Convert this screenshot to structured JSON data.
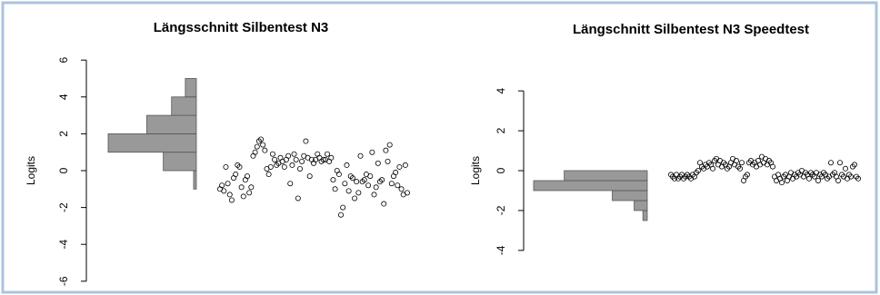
{
  "chart_data": [
    {
      "type": "scatter",
      "title": "Längsschnitt Silbentest N3",
      "ylabel": "Logits",
      "ylim": [
        -6.6,
        6.6
      ],
      "yticks": [
        -6,
        -4,
        -2,
        0,
        2,
        4,
        6
      ],
      "histogram": {
        "bins": [
          -1,
          0,
          1,
          2,
          3,
          4,
          5
        ],
        "counts": [
          1,
          12,
          32,
          18,
          9,
          4
        ],
        "xlim": [
          0,
          32
        ],
        "color": "#999999"
      },
      "values": [
        -1.0,
        -0.8,
        -1.1,
        0.2,
        -0.7,
        -1.3,
        -1.6,
        -0.4,
        -0.2,
        0.3,
        0.2,
        -0.9,
        -1.4,
        -0.5,
        -0.3,
        -1.2,
        -0.9,
        0.8,
        1.0,
        1.3,
        1.6,
        1.7,
        1.4,
        1.1,
        0.1,
        -0.2,
        0.2,
        0.9,
        0.6,
        0.3,
        0.4,
        0.7,
        0.5,
        0.2,
        0.6,
        0.8,
        -0.7,
        0.3,
        0.9,
        0.6,
        -1.5,
        0.1,
        0.5,
        0.8,
        1.6,
        0.7,
        -0.3,
        0.6,
        0.4,
        0.6,
        0.9,
        0.7,
        0.5,
        0.6,
        0.6,
        0.9,
        0.5,
        0.7,
        -0.5,
        -1.0,
        0.0,
        -0.2,
        -2.4,
        -2.0,
        -0.7,
        0.3,
        -1.1,
        -0.3,
        -0.4,
        -1.5,
        -0.6,
        -1.2,
        0.8,
        -0.6,
        -0.5,
        -0.2,
        -0.8,
        -0.3,
        1.0,
        -1.3,
        -0.9,
        0.4,
        -0.6,
        -0.5,
        -1.8,
        1.1,
        0.5,
        1.4,
        -0.7,
        -0.3,
        -0.1,
        -0.8,
        0.2,
        -1.0,
        -1.3,
        0.3,
        -1.2
      ]
    },
    {
      "type": "scatter",
      "title": "Längschnitt Silbentest N3 Speedtest",
      "ylabel": "Logits",
      "ylim": [
        -5.6,
        5.6
      ],
      "yticks": [
        -4,
        -2,
        0,
        2,
        4
      ],
      "histogram": {
        "bins": [
          -2.5,
          -2,
          -1.5,
          -1,
          -0.5,
          0
        ],
        "counts": [
          1,
          3,
          8,
          26,
          19,
          5
        ],
        "xlim": [
          0,
          26
        ],
        "color": "#999999"
      },
      "values": [
        -0.2,
        -0.3,
        -0.4,
        -0.2,
        -0.4,
        -0.3,
        -0.2,
        -0.4,
        -0.3,
        -0.2,
        -0.3,
        -0.4,
        -0.2,
        -0.3,
        -0.1,
        0.0,
        0.4,
        0.2,
        0.1,
        0.3,
        0.2,
        0.4,
        0.3,
        0.1,
        0.5,
        0.6,
        0.3,
        0.5,
        0.2,
        0.4,
        0.3,
        0.1,
        0.2,
        0.4,
        0.6,
        0.3,
        0.5,
        0.2,
        0.1,
        0.4,
        -0.5,
        -0.3,
        -0.2,
        0.4,
        0.5,
        0.3,
        0.4,
        0.2,
        0.5,
        0.3,
        0.7,
        0.4,
        0.6,
        0.3,
        0.5,
        0.4,
        0.2,
        -0.3,
        -0.5,
        -0.2,
        -0.4,
        -0.6,
        -0.3,
        -0.2,
        -0.5,
        -0.3,
        -0.1,
        -0.4,
        -0.2,
        -0.3,
        -0.1,
        -0.2,
        0.0,
        -0.3,
        -0.1,
        -0.2,
        -0.4,
        -0.1,
        -0.2,
        -0.3,
        -0.1,
        -0.5,
        -0.2,
        -0.3,
        -0.1,
        -0.2,
        -0.4,
        -0.3,
        0.4,
        -0.2,
        -0.1,
        -0.3,
        -0.5,
        0.4,
        -0.2,
        -0.3,
        0.1,
        -0.4,
        -0.2,
        -0.3,
        0.2,
        0.3,
        -0.3,
        -0.4
      ]
    }
  ]
}
